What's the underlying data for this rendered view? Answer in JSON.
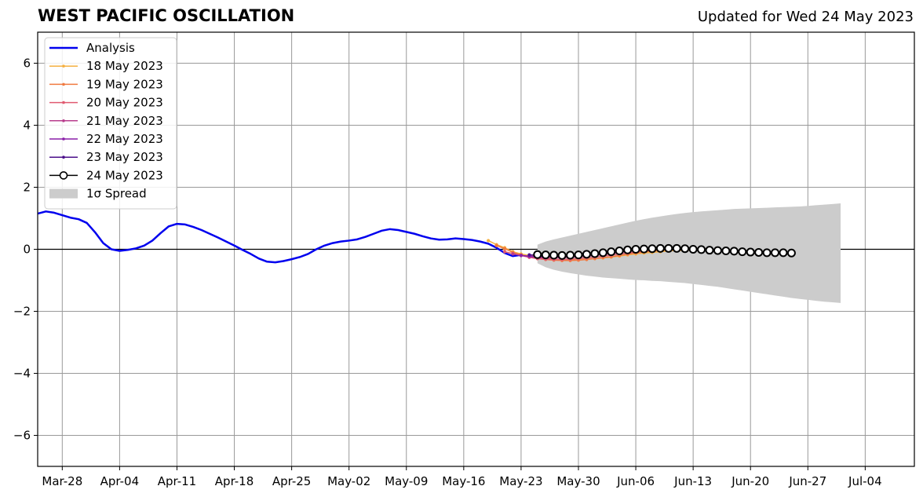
{
  "chart_data": {
    "type": "line",
    "title": "WEST PACIFIC OSCILLATION",
    "subtitle": "Updated for Wed 24 May 2023",
    "xlabel": "",
    "ylabel": "",
    "x_range": [
      "2023-03-25",
      "2023-07-10"
    ],
    "ylim": [
      -7,
      7
    ],
    "y_ticks": [
      -6,
      -4,
      -2,
      0,
      2,
      4,
      6
    ],
    "y_tick_labels": [
      "−6",
      "−4",
      "−2",
      "0",
      "2",
      "4",
      "6"
    ],
    "x_ticks": [
      "2023-03-28",
      "2023-04-04",
      "2023-04-11",
      "2023-04-18",
      "2023-04-25",
      "2023-05-02",
      "2023-05-09",
      "2023-05-16",
      "2023-05-23",
      "2023-05-30",
      "2023-06-06",
      "2023-06-13",
      "2023-06-20",
      "2023-06-27",
      "2023-07-04"
    ],
    "x_tick_labels": [
      "Mar-28",
      "Apr-04",
      "Apr-11",
      "Apr-18",
      "Apr-25",
      "May-02",
      "May-09",
      "May-16",
      "May-23",
      "May-30",
      "Jun-06",
      "Jun-13",
      "Jun-20",
      "Jun-27",
      "Jul-04"
    ],
    "grid": true,
    "legend_position": "upper-left",
    "zero_line": true,
    "analysis": {
      "name": "Analysis",
      "color": "#0000ee",
      "start_date": "2023-03-25",
      "values": [
        1.15,
        1.22,
        1.18,
        1.1,
        1.02,
        0.97,
        0.85,
        0.55,
        0.2,
        0.0,
        -0.05,
        -0.02,
        0.03,
        0.12,
        0.28,
        0.52,
        0.74,
        0.82,
        0.8,
        0.72,
        0.62,
        0.5,
        0.38,
        0.25,
        0.12,
        -0.02,
        -0.15,
        -0.3,
        -0.4,
        -0.42,
        -0.38,
        -0.32,
        -0.25,
        -0.15,
        0.0,
        0.12,
        0.2,
        0.25,
        0.28,
        0.32,
        0.4,
        0.5,
        0.6,
        0.65,
        0.62,
        0.56,
        0.5,
        0.42,
        0.35,
        0.31,
        0.32,
        0.35,
        0.33,
        0.3,
        0.25,
        0.18,
        0.05,
        -0.12,
        -0.22,
        -0.18
      ]
    },
    "forecasts": [
      {
        "name": "18 May 2023",
        "color": "#f5b041",
        "start_date": "2023-05-19",
        "values": [
          0.28,
          0.15,
          0.05,
          -0.08,
          -0.15,
          -0.2,
          -0.25,
          -0.3,
          -0.33,
          -0.34,
          -0.35,
          -0.34,
          -0.32,
          -0.3,
          -0.28,
          -0.25,
          -0.22,
          -0.18,
          -0.15,
          -0.12,
          -0.1,
          -0.08,
          -0.05,
          -0.04,
          -0.03,
          -0.03,
          -0.02,
          -0.03,
          -0.04,
          -0.05,
          -0.06,
          -0.07,
          -0.08,
          -0.09,
          -0.1,
          -0.12
        ]
      },
      {
        "name": "19 May 2023",
        "color": "#f07a40",
        "start_date": "2023-05-20",
        "values": [
          0.12,
          0.02,
          -0.1,
          -0.18,
          -0.25,
          -0.3,
          -0.33,
          -0.35,
          -0.36,
          -0.36,
          -0.35,
          -0.33,
          -0.3,
          -0.27,
          -0.24,
          -0.2,
          -0.16,
          -0.12,
          -0.09,
          -0.06,
          -0.04,
          -0.02,
          -0.01,
          -0.01,
          -0.02,
          -0.03,
          -0.04,
          -0.06,
          -0.07,
          -0.08,
          -0.1,
          -0.12,
          -0.13,
          -0.14,
          -0.15
        ]
      },
      {
        "name": "20 May 2023",
        "color": "#e05a70",
        "start_date": "2023-05-21",
        "values": [
          -0.08,
          -0.14,
          -0.2,
          -0.26,
          -0.3,
          -0.32,
          -0.33,
          -0.33,
          -0.32,
          -0.3,
          -0.28,
          -0.25,
          -0.22,
          -0.19,
          -0.15,
          -0.12,
          -0.09,
          -0.06,
          -0.03,
          -0.01,
          0.0,
          0.0,
          -0.01,
          -0.02,
          -0.03,
          -0.05,
          -0.06,
          -0.08,
          -0.09,
          -0.1,
          -0.11,
          -0.12,
          -0.13,
          -0.14
        ]
      },
      {
        "name": "21 May 2023",
        "color": "#b83c8c",
        "start_date": "2023-05-22",
        "values": [
          -0.15,
          -0.2,
          -0.24,
          -0.27,
          -0.28,
          -0.28,
          -0.27,
          -0.26,
          -0.24,
          -0.22,
          -0.19,
          -0.16,
          -0.13,
          -0.1,
          -0.07,
          -0.04,
          -0.02,
          0.0,
          0.01,
          0.01,
          0.0,
          -0.01,
          -0.02,
          -0.04,
          -0.05,
          -0.07,
          -0.08,
          -0.09,
          -0.1,
          -0.11,
          -0.12,
          -0.12,
          -0.13
        ]
      },
      {
        "name": "22 May 2023",
        "color": "#8a1fa8",
        "start_date": "2023-05-23",
        "values": [
          -0.2,
          -0.22,
          -0.24,
          -0.24,
          -0.23,
          -0.22,
          -0.2,
          -0.18,
          -0.16,
          -0.13,
          -0.1,
          -0.08,
          -0.05,
          -0.02,
          0.0,
          0.02,
          0.03,
          0.03,
          0.02,
          0.01,
          0.0,
          -0.02,
          -0.03,
          -0.05,
          -0.06,
          -0.08,
          -0.09,
          -0.1,
          -0.11,
          -0.12,
          -0.12,
          -0.13
        ]
      },
      {
        "name": "23 May 2023",
        "color": "#4b0f8a",
        "start_date": "2023-05-24",
        "values": [
          -0.18,
          -0.19,
          -0.2,
          -0.2,
          -0.19,
          -0.18,
          -0.16,
          -0.14,
          -0.11,
          -0.08,
          -0.05,
          -0.02,
          0.0,
          0.02,
          0.03,
          0.04,
          0.04,
          0.03,
          0.02,
          0.0,
          -0.02,
          -0.03,
          -0.05,
          -0.06,
          -0.08,
          -0.09,
          -0.1,
          -0.11,
          -0.11,
          -0.12,
          -0.12
        ]
      },
      {
        "name": "24 May 2023",
        "color": "#000000",
        "marker": "open-circle",
        "start_date": "2023-05-25",
        "values": [
          -0.17,
          -0.18,
          -0.19,
          -0.2,
          -0.19,
          -0.18,
          -0.16,
          -0.14,
          -0.11,
          -0.08,
          -0.05,
          -0.02,
          0.0,
          0.01,
          0.02,
          0.03,
          0.03,
          0.03,
          0.02,
          0.0,
          -0.01,
          -0.03,
          -0.04,
          -0.05,
          -0.06,
          -0.08,
          -0.09,
          -0.1,
          -0.11,
          -0.11,
          -0.11,
          -0.12
        ]
      }
    ],
    "spread": {
      "name": "1σ Spread",
      "color": "#cccccc",
      "start_date": "2023-05-25",
      "upper": [
        0.15,
        0.25,
        0.32,
        0.38,
        0.44,
        0.5,
        0.56,
        0.62,
        0.68,
        0.74,
        0.8,
        0.86,
        0.92,
        0.97,
        1.02,
        1.06,
        1.1,
        1.14,
        1.17,
        1.2,
        1.22,
        1.24,
        1.26,
        1.28,
        1.3,
        1.31,
        1.32,
        1.33,
        1.34,
        1.35,
        1.36,
        1.37,
        1.38,
        1.4,
        1.42,
        1.44,
        1.46,
        1.48
      ],
      "lower": [
        -0.45,
        -0.58,
        -0.66,
        -0.72,
        -0.77,
        -0.81,
        -0.85,
        -0.88,
        -0.91,
        -0.93,
        -0.95,
        -0.97,
        -0.99,
        -1.0,
        -1.02,
        -1.03,
        -1.05,
        -1.07,
        -1.09,
        -1.12,
        -1.15,
        -1.18,
        -1.21,
        -1.25,
        -1.29,
        -1.33,
        -1.37,
        -1.41,
        -1.45,
        -1.49,
        -1.53,
        -1.57,
        -1.6,
        -1.63,
        -1.66,
        -1.69,
        -1.71,
        -1.73
      ]
    },
    "legend": [
      "Analysis",
      "18 May 2023",
      "19 May 2023",
      "20 May 2023",
      "21 May 2023",
      "22 May 2023",
      "23 May 2023",
      "24 May 2023",
      "1σ Spread"
    ]
  }
}
